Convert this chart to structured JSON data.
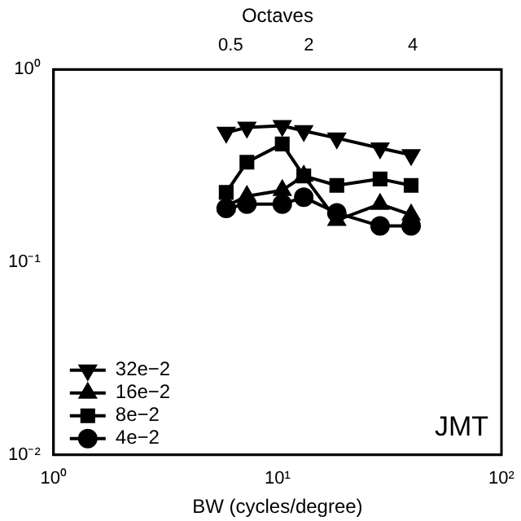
{
  "chart_data": {
    "type": "line",
    "xlabel": "BW (cycles/degree)",
    "x2label": "Octaves",
    "x": [
      5.9,
      7.3,
      10.5,
      13.1,
      18.4,
      28.7,
      39.5
    ],
    "xlim": [
      1,
      100
    ],
    "xticks": [
      {
        "value": 1,
        "label": "10⁰"
      },
      {
        "value": 10,
        "label": "10¹"
      },
      {
        "value": 100,
        "label": "10²"
      }
    ],
    "x2lim": [
      -2.9,
      5.7
    ],
    "x2ticks": [
      0.5,
      2,
      4
    ],
    "ylim": [
      0.01,
      1
    ],
    "yticks": [
      {
        "value": 0.01,
        "label": "10⁻²"
      },
      {
        "value": 0.1,
        "label": "10⁻¹"
      },
      {
        "value": 1,
        "label": "10⁰"
      }
    ],
    "log": "xy",
    "grid": false,
    "legend": "bottom left",
    "line_style": "solid",
    "series": [
      {
        "name": "32e−2",
        "color": "#000000",
        "marker": "triangle-down",
        "values": [
          0.47,
          0.5,
          0.51,
          0.48,
          0.44,
          0.39,
          0.36
        ]
      },
      {
        "name": "16e−2",
        "color": "#000000",
        "marker": "triangle",
        "values": [
          0.195,
          0.22,
          0.236,
          0.28,
          0.165,
          0.2,
          0.176
        ]
      },
      {
        "name": "8e−2",
        "color": "#000000",
        "marker": "square",
        "values": [
          0.23,
          0.33,
          0.41,
          0.28,
          0.25,
          0.27,
          0.25
        ]
      },
      {
        "name": "4e−2",
        "color": "#000000",
        "marker": "circle",
        "values": [
          0.19,
          0.2,
          0.2,
          0.217,
          0.18,
          0.154,
          0.154
        ]
      }
    ],
    "annotations": [
      "JMT"
    ]
  }
}
